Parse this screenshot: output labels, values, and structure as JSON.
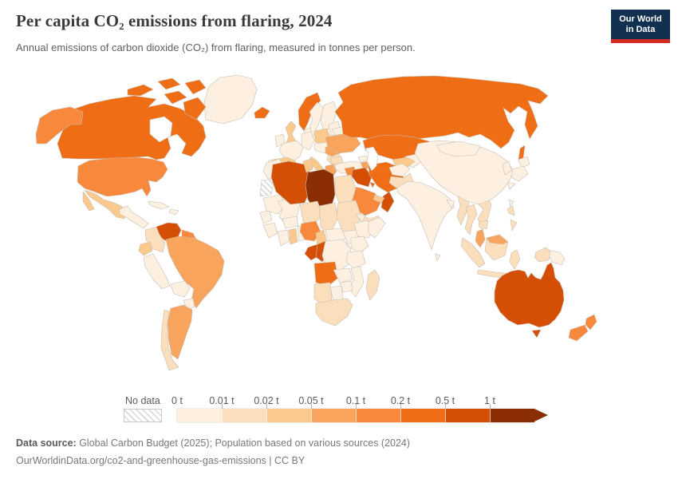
{
  "header": {
    "title": "Per capita CO₂ emissions from flaring, 2024",
    "subtitle": "Annual emissions of carbon dioxide (CO₂) from flaring, measured in tonnes per person.",
    "logo": {
      "line1": "Our World",
      "line2": "in Data"
    }
  },
  "chart_data": {
    "type": "choropleth",
    "title": "Per capita CO₂ emissions from flaring, 2024",
    "unit": "tonnes per person",
    "year": "2024",
    "legend": {
      "no_data_label": "No data",
      "tick_labels": [
        "0 t",
        "0.01 t",
        "0.02 t",
        "0.05 t",
        "0.1 t",
        "0.2 t",
        "0.5 t",
        "1 t"
      ],
      "bin_colors": [
        "#fdf0e1",
        "#fbdfbd",
        "#fbc98c",
        "#f9a45c",
        "#f8883c",
        "#ee6d15",
        "#d44e04",
        "#8b2e04"
      ],
      "no_data_fill": "hatch"
    },
    "regions": {
      "greenland": 0,
      "iceland": 5,
      "canada": 5,
      "canada_arctic_1": 5,
      "canada_arctic_2": 5,
      "canada_arctic_3": 5,
      "canada_arctic_4": 5,
      "baffin_island": 5,
      "alaska": 4,
      "usa": 4,
      "mexico": 2,
      "baja_california": 2,
      "central_america": 0,
      "cuba": 0,
      "hispaniola": 0,
      "venezuela": 6,
      "guyanas": 4,
      "colombia": 1,
      "ecuador": 2,
      "peru": 0,
      "brazil": 3,
      "bolivia": 0,
      "paraguay": 0,
      "argentina": 3,
      "chile": 1,
      "uk": 2,
      "ireland": 0,
      "norway": 5,
      "sweden": 0,
      "finland": 0,
      "denmark": 0,
      "baltics": 0,
      "belarus": 0,
      "poland": 2,
      "germany": 0,
      "france": 0,
      "spain": 2,
      "portugal": 0,
      "italy": 2,
      "sicily": 2,
      "czech_austria": 0,
      "balkans": 1,
      "romania": 3,
      "bulgaria": 1,
      "greece": 3,
      "ukraine": 3,
      "turkey": 0,
      "russia": 5,
      "sakhalin": 5,
      "kazakhstan": 5,
      "central_asia": 0,
      "uzbekistan": 2,
      "turkmenistan": 2,
      "georgia": 0,
      "azerbaijan": 3,
      "syria": 4,
      "jordan_israel": 0,
      "iraq": 6,
      "iran": 5,
      "saudi_arabia": 4,
      "yemen": 1,
      "oman": 6,
      "uae_qatar": 2,
      "kuwait": 5,
      "afghanistan": 0,
      "pakistan": 1,
      "india": 0,
      "sri_lanka": 0,
      "bangladesh": 0,
      "myanmar": 1,
      "thailand": 1,
      "vietnam_laos": 1,
      "cambodia": 1,
      "malaysia": 3,
      "sumatra": 1,
      "java": 1,
      "borneo": 1,
      "east_malaysia": 3,
      "sulawesi": 1,
      "new_guinea_west": 1,
      "papua_new_guinea": 0,
      "philippines_1": 1,
      "philippines_2": 1,
      "taiwan": 0,
      "china": 0,
      "mongolia": 0,
      "korea": 0,
      "japan_1": 0,
      "japan_2": 0,
      "japan_3": 0,
      "morocco": 0,
      "mauritania": 0,
      "mali": 0,
      "senegal": 0,
      "guinea": 0,
      "ivory_coast": 0,
      "ghana": 2,
      "togo_benin": 0,
      "burkina_faso": 0,
      "algeria": 6,
      "tunisia": 2,
      "libya": 7,
      "egypt": 1,
      "niger": 1,
      "chad": 1,
      "sudan": 1,
      "eritrea": 0,
      "ethiopia": 0,
      "somalia": 0,
      "nigeria": 4,
      "cameroon": 2,
      "central_african_republic": 0,
      "south_sudan": 0,
      "gabon": 6,
      "congo": 6,
      "drc": 0,
      "uganda_kenya": 0,
      "tanzania": 0,
      "angola": 5,
      "zambia": 0,
      "mozambique": 0,
      "zimbabwe": 0,
      "namibia": 1,
      "botswana": 0,
      "south_africa": 1,
      "madagascar": 1,
      "australia": 6,
      "tasmania": 6,
      "new_zealand_north": 4,
      "new_zealand_south": 4
    },
    "no_data_regions": [
      "western_sahara"
    ],
    "water_overlays": [
      "hudson_bay",
      "caspian_sea"
    ]
  },
  "footer": {
    "source_label": "Data source:",
    "source_text": " Global Carbon Budget (2025); Population based on various sources (2024)",
    "link_text": "OurWorldinData.org/co2-and-greenhouse-gas-emissions | CC BY"
  },
  "colors": {
    "logo_navy": "#12304f",
    "logo_red": "#d42b23",
    "border": "#c6beb2"
  }
}
